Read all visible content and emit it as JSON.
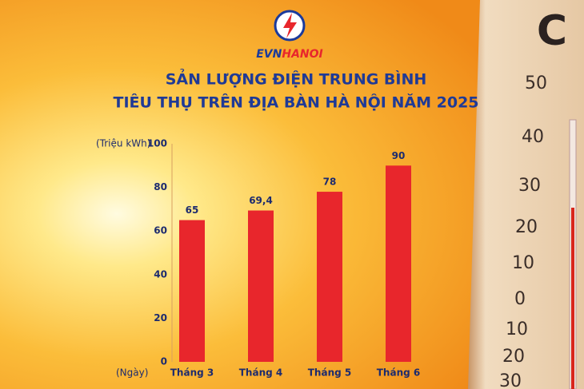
{
  "logo": {
    "evn": "EVN",
    "hanoi": "HANOI"
  },
  "thermometer": {
    "unit": "C",
    "labels": [
      "50",
      "40",
      "30",
      "20",
      "10",
      "0",
      "10",
      "20",
      "30"
    ]
  },
  "chart_data": {
    "type": "bar",
    "title": [
      "SẢN LƯỢNG ĐIỆN TRUNG BÌNH",
      "TIÊU THỤ TRÊN ĐỊA BÀN HÀ NỘI NĂM 2025"
    ],
    "y_label": "(Triệu kWh)",
    "x_label": "(Ngày)",
    "categories": [
      "Tháng 3",
      "Tháng 4",
      "Tháng 5",
      "Tháng 6"
    ],
    "values": [
      65,
      69.4,
      78,
      90
    ],
    "value_labels": [
      "65",
      "69,4",
      "78",
      "90"
    ],
    "color": "#e8262c",
    "ylim": [
      0,
      100
    ],
    "yticks": [
      0,
      20,
      40,
      60,
      80,
      100
    ],
    "grid": false
  }
}
